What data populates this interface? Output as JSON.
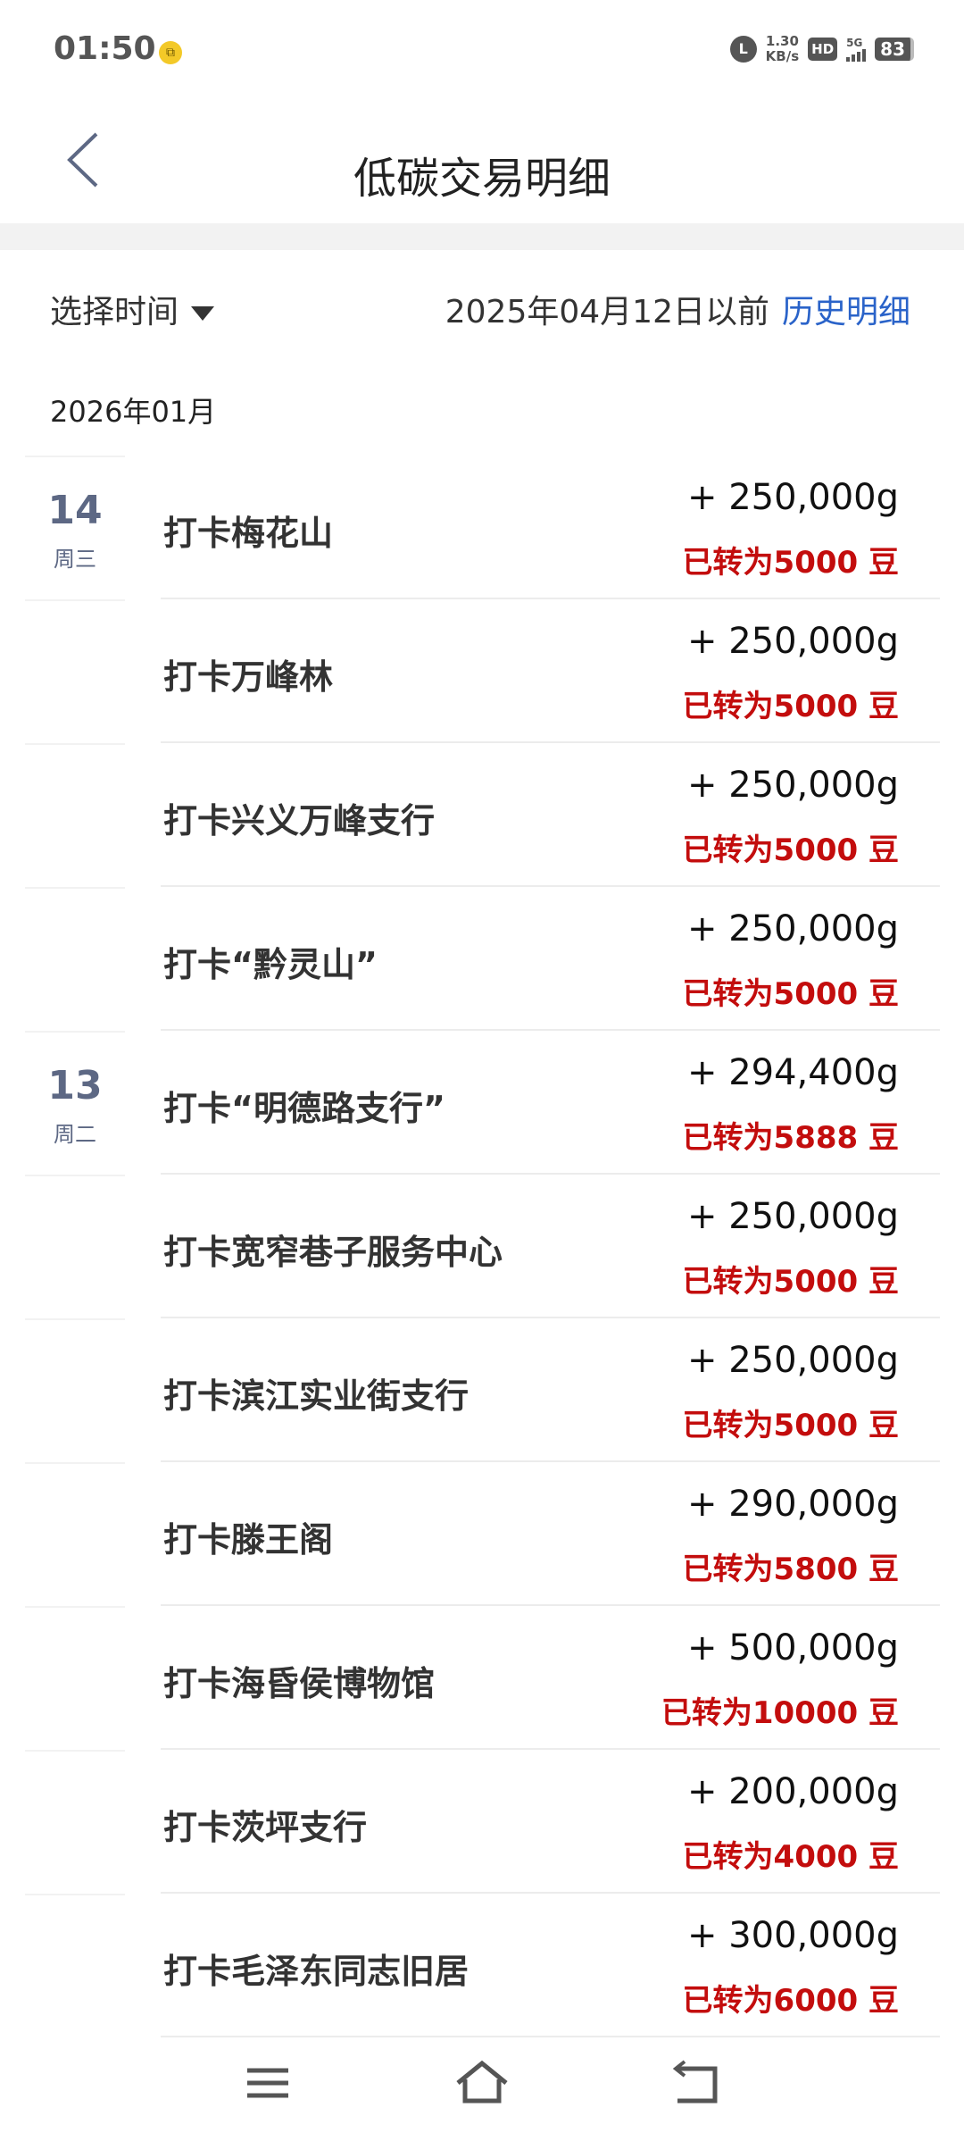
{
  "status": {
    "time": "01:50",
    "speed": "1.30",
    "speed_unit": "KB/s",
    "hd": "HD",
    "network": "5G",
    "battery": "83"
  },
  "header": {
    "title": "低碳交易明细"
  },
  "filter": {
    "picker_label": "选择时间",
    "before_text": "2025年04月12日以前",
    "history_link": "历史明细"
  },
  "month": "2026年01月",
  "colors": {
    "accent": "#2a63c9",
    "converted": "#c30d0d",
    "date": "#5d6884"
  },
  "rows": [
    {
      "day": "14",
      "weekday": "周三",
      "name": "打卡梅花山",
      "amount": "+ 250,000g",
      "converted": "已转为5000 豆"
    },
    {
      "day": "",
      "weekday": "",
      "name": "打卡万峰林",
      "amount": "+ 250,000g",
      "converted": "已转为5000 豆"
    },
    {
      "day": "",
      "weekday": "",
      "name": "打卡兴义万峰支行",
      "amount": "+ 250,000g",
      "converted": "已转为5000 豆"
    },
    {
      "day": "",
      "weekday": "",
      "name": "打卡“黔灵山”",
      "amount": "+ 250,000g",
      "converted": "已转为5000 豆"
    },
    {
      "day": "13",
      "weekday": "周二",
      "name": "打卡“明德路支行”",
      "amount": "+ 294,400g",
      "converted": "已转为5888 豆"
    },
    {
      "day": "",
      "weekday": "",
      "name": "打卡宽窄巷子服务中心",
      "amount": "+ 250,000g",
      "converted": "已转为5000 豆"
    },
    {
      "day": "",
      "weekday": "",
      "name": "打卡滨江实业街支行",
      "amount": "+ 250,000g",
      "converted": "已转为5000 豆"
    },
    {
      "day": "",
      "weekday": "",
      "name": "打卡滕王阁",
      "amount": "+ 290,000g",
      "converted": "已转为5800 豆"
    },
    {
      "day": "",
      "weekday": "",
      "name": "打卡海昏侯博物馆",
      "amount": "+ 500,000g",
      "converted": "已转为10000 豆"
    },
    {
      "day": "",
      "weekday": "",
      "name": "打卡茨坪支行",
      "amount": "+ 200,000g",
      "converted": "已转为4000 豆"
    },
    {
      "day": "",
      "weekday": "",
      "name": "打卡毛泽东同志旧居",
      "amount": "+ 300,000g",
      "converted": "已转为6000 豆"
    }
  ]
}
